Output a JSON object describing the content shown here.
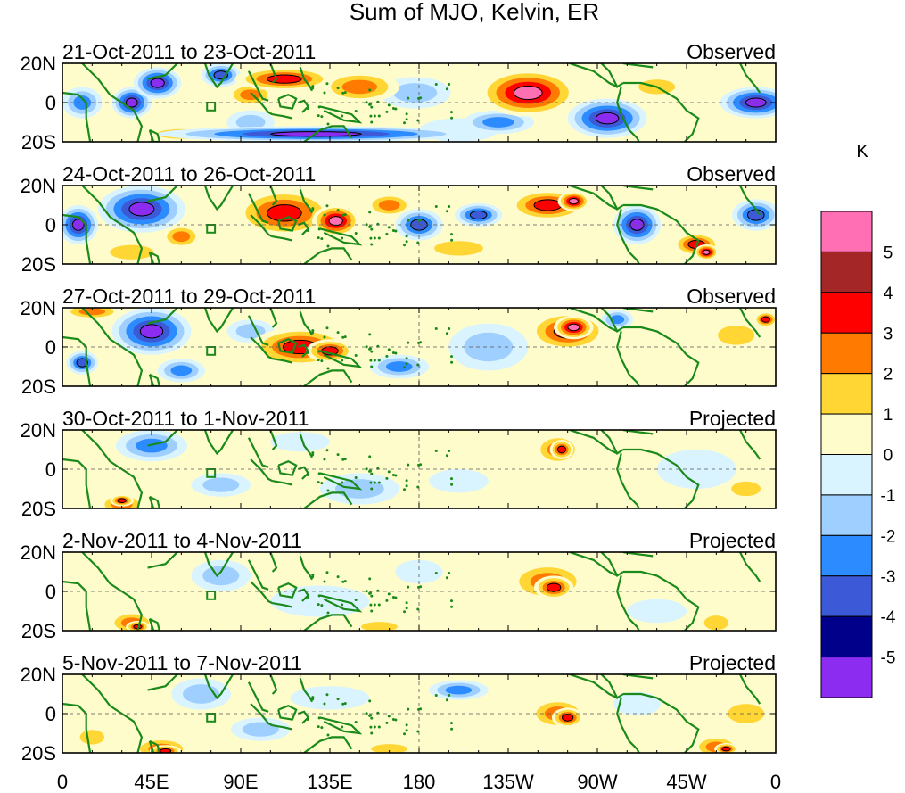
{
  "chart_data": {
    "type": "heatmap",
    "title": "Sum of MJO, Kelvin, ER",
    "units": "K",
    "x_ticks": [
      "0",
      "45E",
      "90E",
      "135E",
      "180",
      "135W",
      "90W",
      "45W",
      "0"
    ],
    "y_ticks": [
      "20N",
      "0",
      "20S"
    ],
    "ylim": [
      -20,
      20
    ],
    "xlim": [
      0,
      360
    ],
    "colorbar": {
      "levels": [
        "5",
        "4",
        "3",
        "2",
        "1",
        "0",
        "-1",
        "-2",
        "-3",
        "-4",
        "-5"
      ],
      "colors": [
        "#ff6fb4",
        "#a52626",
        "#ff0000",
        "#ff7a00",
        "#ffd634",
        "#fffccc",
        "#d9f3ff",
        "#9fcfff",
        "#2c8cff",
        "#3c5ad8",
        "#00008a",
        "#8c2cf0"
      ]
    },
    "panels": [
      {
        "period": "21-Oct-2011 to 23-Oct-2011",
        "status": "Observed",
        "blobs": [
          [
            35,
            0,
            10,
            8,
            -5
          ],
          [
            48,
            10,
            12,
            8,
            -5
          ],
          [
            80,
            14,
            10,
            6,
            -4
          ],
          [
            95,
            4,
            12,
            6,
            3
          ],
          [
            112,
            12,
            25,
            6,
            4
          ],
          [
            150,
            8,
            20,
            8,
            3
          ],
          [
            128,
            -16,
            80,
            4,
            -5
          ],
          [
            60,
            -16,
            20,
            4,
            2
          ],
          [
            178,
            5,
            18,
            8,
            -2
          ],
          [
            235,
            5,
            25,
            12,
            5
          ],
          [
            220,
            -10,
            18,
            6,
            -3
          ],
          [
            275,
            -8,
            20,
            10,
            -5
          ],
          [
            300,
            8,
            15,
            6,
            2
          ],
          [
            350,
            0,
            18,
            8,
            -5
          ],
          [
            10,
            0,
            10,
            8,
            -3
          ],
          [
            95,
            -10,
            12,
            6,
            -2
          ],
          [
            200,
            -14,
            20,
            6,
            -1
          ]
        ]
      },
      {
        "period": "24-Oct-2011 to 26-Oct-2011",
        "status": "Observed",
        "blobs": [
          [
            40,
            8,
            22,
            12,
            -5
          ],
          [
            8,
            0,
            10,
            10,
            -5
          ],
          [
            35,
            -14,
            18,
            6,
            2
          ],
          [
            112,
            6,
            25,
            12,
            4
          ],
          [
            138,
            2,
            12,
            8,
            5
          ],
          [
            180,
            0,
            12,
            8,
            -4
          ],
          [
            165,
            10,
            12,
            6,
            3
          ],
          [
            210,
            5,
            12,
            6,
            -4
          ],
          [
            245,
            10,
            20,
            8,
            4
          ],
          [
            258,
            12,
            8,
            5,
            5
          ],
          [
            290,
            0,
            12,
            10,
            -5
          ],
          [
            320,
            -10,
            12,
            6,
            4
          ],
          [
            325,
            -14,
            6,
            4,
            5
          ],
          [
            350,
            5,
            12,
            8,
            -4
          ],
          [
            60,
            -6,
            10,
            6,
            3
          ],
          [
            200,
            -12,
            20,
            6,
            2
          ]
        ]
      },
      {
        "period": "27-Oct-2011 to 29-Oct-2011",
        "status": "Observed",
        "blobs": [
          [
            45,
            8,
            20,
            12,
            -5
          ],
          [
            15,
            18,
            15,
            4,
            3
          ],
          [
            10,
            -8,
            8,
            6,
            -4
          ],
          [
            120,
            0,
            25,
            10,
            4
          ],
          [
            135,
            -2,
            12,
            6,
            4
          ],
          [
            215,
            0,
            20,
            12,
            -2
          ],
          [
            255,
            8,
            20,
            10,
            4
          ],
          [
            258,
            10,
            10,
            6,
            5
          ],
          [
            280,
            14,
            8,
            5,
            -3
          ],
          [
            340,
            6,
            15,
            8,
            2
          ],
          [
            355,
            14,
            6,
            4,
            4
          ],
          [
            60,
            -12,
            12,
            6,
            -3
          ],
          [
            170,
            -10,
            15,
            6,
            -3
          ],
          [
            95,
            8,
            12,
            6,
            -2
          ]
        ]
      },
      {
        "period": "30-Oct-2011 to 1-Nov-2011",
        "status": "Projected",
        "blobs": [
          [
            45,
            12,
            18,
            8,
            -3
          ],
          [
            30,
            -18,
            12,
            6,
            3
          ],
          [
            30,
            -16,
            6,
            3,
            4
          ],
          [
            80,
            -8,
            15,
            6,
            -2
          ],
          [
            150,
            -10,
            20,
            8,
            -2
          ],
          [
            250,
            10,
            12,
            8,
            3
          ],
          [
            252,
            10,
            6,
            5,
            4
          ],
          [
            320,
            0,
            20,
            10,
            -1
          ],
          [
            345,
            -10,
            12,
            6,
            2
          ],
          [
            290,
            -14,
            15,
            5,
            1
          ],
          [
            120,
            14,
            15,
            5,
            -1
          ],
          [
            200,
            -6,
            15,
            6,
            -1
          ]
        ]
      },
      {
        "period": "2-Nov-2011 to 4-Nov-2011",
        "status": "Projected",
        "blobs": [
          [
            35,
            -16,
            12,
            6,
            3
          ],
          [
            38,
            -18,
            6,
            3,
            4
          ],
          [
            80,
            8,
            15,
            8,
            -2
          ],
          [
            130,
            -5,
            25,
            8,
            -1
          ],
          [
            180,
            10,
            12,
            6,
            -1
          ],
          [
            245,
            5,
            20,
            10,
            3
          ],
          [
            248,
            2,
            10,
            6,
            4
          ],
          [
            300,
            -10,
            15,
            6,
            -1
          ],
          [
            330,
            -16,
            10,
            6,
            2
          ],
          [
            160,
            -18,
            15,
            4,
            2
          ],
          [
            15,
            10,
            10,
            6,
            1
          ],
          [
            345,
            15,
            12,
            5,
            1
          ]
        ]
      },
      {
        "period": "5-Nov-2011 to 7-Nov-2011",
        "status": "Projected",
        "blobs": [
          [
            50,
            -18,
            15,
            6,
            3
          ],
          [
            52,
            -19,
            8,
            3,
            4
          ],
          [
            70,
            10,
            15,
            8,
            -2
          ],
          [
            100,
            -8,
            15,
            6,
            -2
          ],
          [
            200,
            12,
            15,
            5,
            -3
          ],
          [
            250,
            0,
            15,
            8,
            3
          ],
          [
            255,
            -2,
            8,
            5,
            4
          ],
          [
            330,
            -17,
            12,
            6,
            3
          ],
          [
            335,
            -18,
            6,
            3,
            4
          ],
          [
            345,
            0,
            15,
            8,
            2
          ],
          [
            135,
            8,
            20,
            6,
            -1
          ],
          [
            290,
            5,
            12,
            6,
            -1
          ],
          [
            15,
            -12,
            10,
            6,
            2
          ],
          [
            165,
            -18,
            15,
            4,
            2
          ]
        ]
      }
    ]
  }
}
